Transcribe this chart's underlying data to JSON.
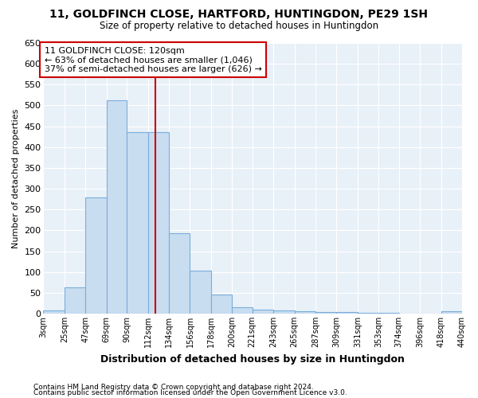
{
  "title": "11, GOLDFINCH CLOSE, HARTFORD, HUNTINGDON, PE29 1SH",
  "subtitle": "Size of property relative to detached houses in Huntingdon",
  "xlabel": "Distribution of detached houses by size in Huntingdon",
  "ylabel": "Number of detached properties",
  "bar_color": "#c8ddf0",
  "bar_edgecolor": "#7aaedc",
  "background_color": "#e8f0f8",
  "grid_color": "#ffffff",
  "fig_background": "#ffffff",
  "vline_x": 120,
  "vline_color": "#cc0000",
  "annotation_text": "11 GOLDFINCH CLOSE: 120sqm\n← 63% of detached houses are smaller (1,046)\n37% of semi-detached houses are larger (626) →",
  "footer_line1": "Contains HM Land Registry data © Crown copyright and database right 2024.",
  "footer_line2": "Contains public sector information licensed under the Open Government Licence v3.0.",
  "bin_edges": [
    3,
    25,
    47,
    69,
    90,
    112,
    134,
    156,
    178,
    200,
    221,
    243,
    265,
    287,
    309,
    331,
    353,
    374,
    396,
    418,
    440
  ],
  "bin_labels": [
    "3sqm",
    "25sqm",
    "47sqm",
    "69sqm",
    "90sqm",
    "112sqm",
    "134sqm",
    "156sqm",
    "178sqm",
    "200sqm",
    "221sqm",
    "243sqm",
    "265sqm",
    "287sqm",
    "309sqm",
    "331sqm",
    "353sqm",
    "374sqm",
    "396sqm",
    "418sqm",
    "440sqm"
  ],
  "bar_heights": [
    8,
    63,
    280,
    512,
    435,
    435,
    193,
    103,
    46,
    15,
    10,
    8,
    5,
    4,
    3,
    2,
    1,
    0,
    0,
    5
  ],
  "ylim": [
    0,
    650
  ],
  "yticks": [
    0,
    50,
    100,
    150,
    200,
    250,
    300,
    350,
    400,
    450,
    500,
    550,
    600,
    650
  ]
}
